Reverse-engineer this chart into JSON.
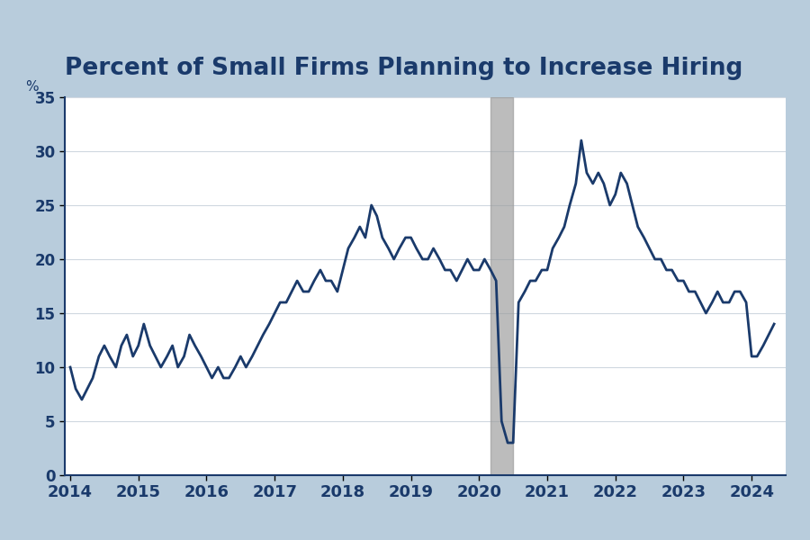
{
  "title": "Percent of Small Firms Planning to Increase Hiring",
  "title_color": "#1a3a6b",
  "background_color": "#b8ccdc",
  "plot_background": "#ffffff",
  "line_color": "#1a3a6b",
  "line_width": 2.0,
  "ylabel": "%",
  "ylim": [
    0,
    35
  ],
  "yticks": [
    0,
    5,
    10,
    15,
    20,
    25,
    30,
    35
  ],
  "recession_start": 2020.17,
  "recession_end": 2020.5,
  "recession_color": "#999999",
  "recession_alpha": 0.65,
  "dates": [
    2014.0,
    2014.08,
    2014.17,
    2014.25,
    2014.33,
    2014.42,
    2014.5,
    2014.58,
    2014.67,
    2014.75,
    2014.83,
    2014.92,
    2015.0,
    2015.08,
    2015.17,
    2015.25,
    2015.33,
    2015.42,
    2015.5,
    2015.58,
    2015.67,
    2015.75,
    2015.83,
    2015.92,
    2016.0,
    2016.08,
    2016.17,
    2016.25,
    2016.33,
    2016.42,
    2016.5,
    2016.58,
    2016.67,
    2016.75,
    2016.83,
    2016.92,
    2017.0,
    2017.08,
    2017.17,
    2017.25,
    2017.33,
    2017.42,
    2017.5,
    2017.58,
    2017.67,
    2017.75,
    2017.83,
    2017.92,
    2018.0,
    2018.08,
    2018.17,
    2018.25,
    2018.33,
    2018.42,
    2018.5,
    2018.58,
    2018.67,
    2018.75,
    2018.83,
    2018.92,
    2019.0,
    2019.08,
    2019.17,
    2019.25,
    2019.33,
    2019.42,
    2019.5,
    2019.58,
    2019.67,
    2019.75,
    2019.83,
    2019.92,
    2020.0,
    2020.08,
    2020.17,
    2020.25,
    2020.33,
    2020.42,
    2020.5,
    2020.58,
    2020.67,
    2020.75,
    2020.83,
    2020.92,
    2021.0,
    2021.08,
    2021.17,
    2021.25,
    2021.33,
    2021.42,
    2021.5,
    2021.58,
    2021.67,
    2021.75,
    2021.83,
    2021.92,
    2022.0,
    2022.08,
    2022.17,
    2022.25,
    2022.33,
    2022.42,
    2022.5,
    2022.58,
    2022.67,
    2022.75,
    2022.83,
    2022.92,
    2023.0,
    2023.08,
    2023.17,
    2023.25,
    2023.33,
    2023.42,
    2023.5,
    2023.58,
    2023.67,
    2023.75,
    2023.83,
    2023.92,
    2024.0,
    2024.08,
    2024.17,
    2024.25,
    2024.33
  ],
  "values": [
    10,
    8,
    7,
    8,
    9,
    11,
    12,
    11,
    10,
    12,
    13,
    11,
    12,
    14,
    12,
    11,
    10,
    11,
    12,
    10,
    11,
    13,
    12,
    11,
    10,
    9,
    10,
    9,
    9,
    10,
    11,
    10,
    11,
    12,
    13,
    14,
    15,
    16,
    16,
    17,
    18,
    17,
    17,
    18,
    19,
    18,
    18,
    17,
    19,
    21,
    22,
    23,
    22,
    25,
    24,
    22,
    21,
    20,
    21,
    22,
    22,
    21,
    20,
    20,
    21,
    20,
    19,
    19,
    18,
    19,
    20,
    19,
    19,
    20,
    19,
    18,
    5,
    3,
    3,
    16,
    17,
    18,
    18,
    19,
    19,
    21,
    22,
    23,
    25,
    27,
    31,
    28,
    27,
    28,
    27,
    25,
    26,
    28,
    27,
    25,
    23,
    22,
    21,
    20,
    20,
    19,
    19,
    18,
    18,
    17,
    17,
    16,
    15,
    16,
    17,
    16,
    16,
    17,
    17,
    16,
    11,
    11,
    12,
    13,
    14
  ],
  "xlim": [
    2013.92,
    2024.5
  ],
  "xticks": [
    2014,
    2015,
    2016,
    2017,
    2018,
    2019,
    2020,
    2021,
    2022,
    2023,
    2024
  ],
  "xtick_labels": [
    "2014",
    "2015",
    "2016",
    "2017",
    "2018",
    "2019",
    "2020",
    "2021",
    "2022",
    "2023",
    "2024"
  ],
  "grid_color": "#d0d8e0",
  "spine_color": "#1a3a6b"
}
